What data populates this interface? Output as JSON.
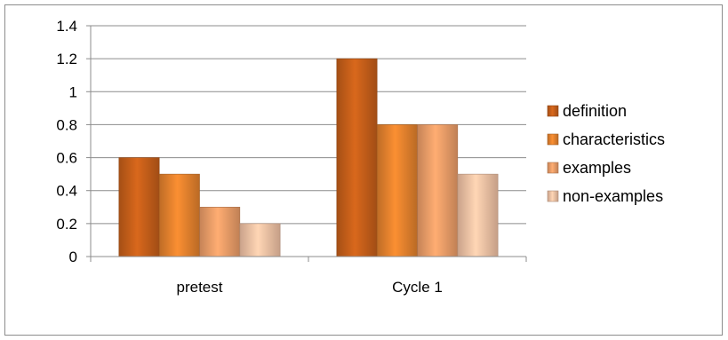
{
  "chart_data": {
    "type": "bar",
    "title": "",
    "xlabel": "",
    "ylabel": "",
    "categories": [
      "pretest",
      "Cycle 1"
    ],
    "series": [
      {
        "name": "definition",
        "values": [
          0.6,
          1.2
        ],
        "color": "#c9601a"
      },
      {
        "name": "characteristics",
        "values": [
          0.5,
          0.8
        ],
        "color": "#e8842e"
      },
      {
        "name": "examples",
        "values": [
          0.3,
          0.8
        ],
        "color": "#f0a06a"
      },
      {
        "name": "non-examples",
        "values": [
          0.2,
          0.5
        ],
        "color": "#f6c6a8"
      }
    ],
    "ylim": [
      0,
      1.4
    ],
    "yticks": [
      "0",
      "0.2",
      "0.4",
      "0.6",
      "0.8",
      "1",
      "1.2",
      "1.4"
    ],
    "grid": true,
    "legend_position": "right"
  }
}
